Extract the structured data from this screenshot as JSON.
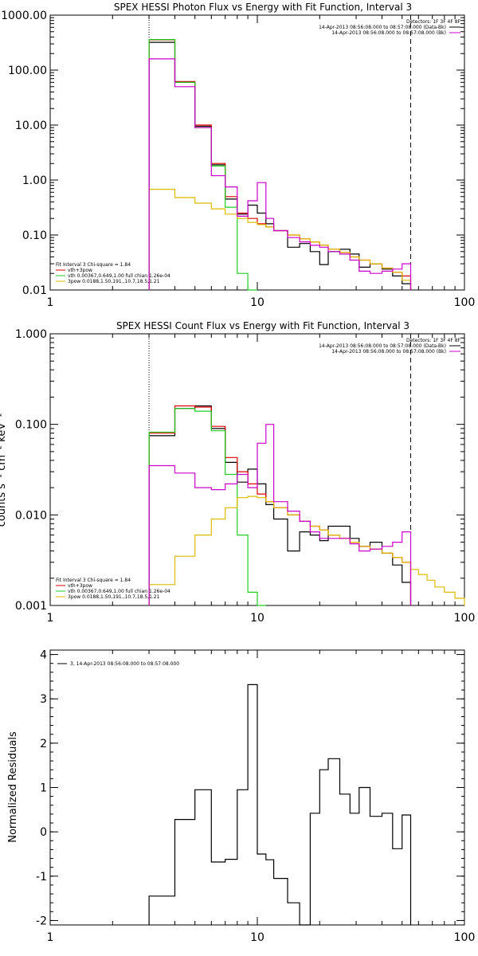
{
  "chart_data": [
    {
      "type": "line",
      "title": "SPEX HESSI Photon Flux vs Energy with Fit Function, Interval 3",
      "xlabel": "",
      "ylabel": "",
      "xscale": "log",
      "yscale": "log",
      "xlim": [
        1,
        100
      ],
      "ylim": [
        0.01,
        1000
      ],
      "x_ticks": [
        1,
        10,
        100
      ],
      "x_tick_labels": [
        "1",
        "10",
        "100"
      ],
      "y_ticks": [
        0.01,
        0.1,
        1,
        10,
        100,
        1000
      ],
      "y_tick_labels": [
        "0.01",
        "0.10",
        "1.00",
        "10.00",
        "100.00",
        "1000.00"
      ],
      "vlines": [
        {
          "x": 3,
          "style": "dotted"
        },
        {
          "x": 55,
          "style": "dashed"
        }
      ],
      "legend_header": [
        "Detectors: 1F 3F 4F 8F",
        "14-Apr-2013 08:56:08.000 to 08:57:08.000 (Data-Bk)",
        "14-Apr-2013 08:56:08.000 to 08:57:08.000 (Bk)"
      ],
      "legend_fit": [
        "Fit Interval  3    Chi-square = 1.84",
        "vth+3pow",
        "vth 0.00367,0.649,1.00   full chian 1.26e-04",
        "3pow 0.0188,1.50,191.,10.7,18.5,1.21"
      ],
      "edges": [
        3,
        4,
        5,
        6,
        7,
        8,
        9,
        10,
        11,
        12,
        14,
        16,
        18,
        20,
        22,
        25,
        28,
        31,
        35,
        40,
        45,
        50,
        55
      ],
      "series": [
        {
          "name": "14-Apr-2013 08:56:08.000 to 08:57:08.000 (Data-Bk)",
          "color": "#000000",
          "values": [
            320,
            60,
            9.5,
            1.9,
            0.45,
            0.24,
            0.35,
            0.25,
            0.16,
            0.12,
            0.06,
            0.07,
            0.05,
            0.029,
            0.05,
            0.055,
            0.045,
            0.026,
            0.03,
            0.024,
            0.018,
            0.013
          ]
        },
        {
          "name": "vth+3pow",
          "color": "#e00000",
          "values": [
            355,
            62,
            10,
            2.0,
            0.5,
            0.25,
            0.2,
            0.16,
            0.14,
            0.12,
            0.1,
            0.085,
            0.075,
            0.065,
            0.055,
            0.048,
            0.04,
            0.035,
            0.03,
            0.025,
            0.021,
            0.018
          ]
        },
        {
          "name": "vth 0.00367,0.649,1.00   full chian 1.26e-04",
          "color": "#22cc22",
          "values": [
            360,
            60,
            9.0,
            1.8,
            0.32,
            0.02,
            0.0005
          ]
        },
        {
          "name": "3pow 0.0188,1.50,191.,10.7,18.5,1.21",
          "color": "#ddbb00",
          "values": [
            0.68,
            0.48,
            0.38,
            0.3,
            0.24,
            0.2,
            0.17,
            0.155,
            0.14,
            0.12,
            0.1,
            0.085,
            0.075,
            0.065,
            0.055,
            0.048,
            0.04,
            0.035,
            0.03,
            0.025,
            0.021,
            0.015
          ]
        },
        {
          "name": "14-Apr-2013 08:56:08.000 to 08:57:08.000 (Bk)",
          "color": "#cc00cc",
          "values": [
            160,
            50,
            9.0,
            1.2,
            0.75,
            0.22,
            0.42,
            0.9,
            0.2,
            0.12,
            0.09,
            0.075,
            0.065,
            0.06,
            0.05,
            0.045,
            0.035,
            0.022,
            0.02,
            0.022,
            0.024,
            0.03
          ]
        }
      ]
    },
    {
      "type": "line",
      "title": "SPEX HESSI Count Flux vs Energy with Fit Function, Interval 3",
      "xlabel": "",
      "ylabel": "counts s⁻¹ cm⁻² keV⁻¹",
      "xscale": "log",
      "yscale": "log",
      "xlim": [
        1,
        100
      ],
      "ylim": [
        0.001,
        1
      ],
      "x_ticks": [
        1,
        10,
        100
      ],
      "x_tick_labels": [
        "1",
        "10",
        "100"
      ],
      "y_ticks": [
        0.001,
        0.01,
        0.1,
        1
      ],
      "y_tick_labels": [
        "0.001",
        "0.010",
        "0.100",
        "1.000"
      ],
      "vlines": [
        {
          "x": 3,
          "style": "dotted"
        },
        {
          "x": 55,
          "style": "dashed"
        }
      ],
      "legend_header": [
        "Detectors: 1F 3F 4F 8F",
        "14-Apr-2013 08:56:08.000 to 08:57:08.000 (Data-Bk)",
        "14-Apr-2013 08:56:08.000 to 08:57:08.000 (Bk)"
      ],
      "legend_fit": [
        "Fit Interval  3    Chi-square = 1.84",
        "vth+3pow",
        "vth 0.00367,0.649,1.00   full chian 1.26e-04",
        "3pow 0.0188,1.50,191.,10.7,18.5,1.21"
      ],
      "edges": [
        3,
        4,
        5,
        6,
        7,
        8,
        9,
        10,
        11,
        12,
        14,
        16,
        18,
        20,
        22,
        25,
        28,
        31,
        35,
        40,
        45,
        50,
        55,
        60,
        66,
        72,
        80,
        90,
        100
      ],
      "series": [
        {
          "name": "14-Apr-2013 08:56:08.000 to 08:57:08.000 (Data-Bk)",
          "color": "#000000",
          "values": [
            0.075,
            0.15,
            0.16,
            0.09,
            0.038,
            0.023,
            0.032,
            0.022,
            0.013,
            0.009,
            0.004,
            0.0065,
            0.006,
            0.0052,
            0.0075,
            0.0075,
            0.0055,
            0.0045,
            0.005,
            0.0038,
            0.0028,
            0.0018
          ]
        },
        {
          "name": "vth+3pow",
          "color": "#e00000",
          "values": [
            0.08,
            0.16,
            0.155,
            0.095,
            0.043,
            0.03,
            0.022,
            0.017,
            0.014,
            0.012,
            0.01,
            0.0085,
            0.0075,
            0.0068,
            0.006,
            0.0055,
            0.005,
            0.0045,
            0.0042,
            0.0038,
            0.0034,
            0.003
          ]
        },
        {
          "name": "vth 0.00367,0.649,1.00   full chian 1.26e-04",
          "color": "#22cc22",
          "values": [
            0.082,
            0.15,
            0.14,
            0.085,
            0.028,
            0.006,
            0.0014,
            0.0003
          ]
        },
        {
          "name": "3pow 0.0188,1.50,191.,10.7,18.5,1.21",
          "color": "#ddbb00",
          "values": [
            0.0017,
            0.0035,
            0.006,
            0.009,
            0.012,
            0.0155,
            0.016,
            0.0155,
            0.014,
            0.012,
            0.01,
            0.0085,
            0.0075,
            0.0068,
            0.006,
            0.0055,
            0.005,
            0.0045,
            0.0042,
            0.0038,
            0.0034,
            0.003,
            0.0025,
            0.0022,
            0.0019,
            0.0016,
            0.0014,
            0.0012
          ]
        },
        {
          "name": "14-Apr-2013 08:56:08.000 to 08:57:08.000 (Bk)",
          "color": "#cc00cc",
          "values": [
            0.035,
            0.029,
            0.02,
            0.019,
            0.022,
            0.028,
            0.02,
            0.062,
            0.1,
            0.014,
            0.011,
            0.0085,
            0.0065,
            0.0055,
            0.0055,
            0.0055,
            0.0048,
            0.004,
            0.0042,
            0.0045,
            0.005,
            0.0065
          ]
        }
      ]
    },
    {
      "type": "line",
      "title": "",
      "xlabel": "",
      "ylabel": "Normalized Residuals",
      "xscale": "log",
      "yscale": "linear",
      "xlim": [
        1,
        100
      ],
      "ylim": [
        -2.1,
        4.1
      ],
      "x_ticks": [
        1,
        10,
        100
      ],
      "x_tick_labels": [
        "1",
        "10",
        "100"
      ],
      "y_ticks": [
        -2,
        -1,
        0,
        1,
        2,
        3,
        4
      ],
      "y_tick_labels": [
        "-2",
        "-1",
        "0",
        "1",
        "2",
        "3",
        "4"
      ],
      "legend": "3, 14-Apr-2013 08:56:08.000 to 08:57:08.000",
      "edges": [
        3,
        4,
        5,
        6,
        7,
        8,
        9,
        10,
        11,
        12,
        14,
        16,
        18,
        20,
        22,
        25,
        28,
        31,
        35,
        40,
        45,
        50,
        55
      ],
      "series": [
        {
          "name": "3, 14-Apr-2013 08:56:08.000 to 08:57:08.000",
          "color": "#000000",
          "values": [
            -1.45,
            0.28,
            0.95,
            -0.68,
            -0.62,
            0.95,
            3.32,
            -0.5,
            -0.63,
            -1.05,
            -1.6,
            -2.1,
            0.42,
            1.4,
            1.65,
            0.85,
            0.42,
            1.0,
            0.35,
            0.42,
            -0.38,
            0.38
          ]
        }
      ]
    }
  ]
}
